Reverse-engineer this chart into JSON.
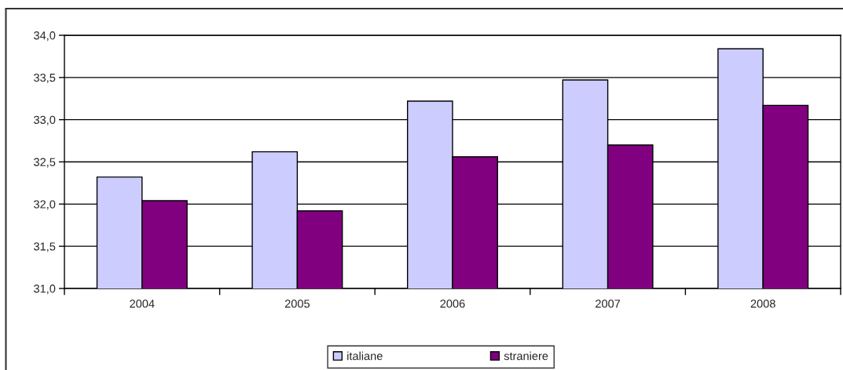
{
  "chart_data": {
    "type": "bar",
    "categories": [
      "2004",
      "2005",
      "2006",
      "2007",
      "2008"
    ],
    "series": [
      {
        "name": "italiane",
        "color": "#ccccff",
        "values": [
          32.32,
          32.62,
          33.22,
          33.47,
          33.84
        ]
      },
      {
        "name": "straniere",
        "color": "#800080",
        "values": [
          32.04,
          31.92,
          32.56,
          32.7,
          33.17
        ]
      }
    ],
    "ylim": [
      31,
      34
    ],
    "yticks": [
      {
        "value": 31,
        "label": "31,0"
      },
      {
        "value": 31.5,
        "label": "31,5"
      },
      {
        "value": 32,
        "label": "32,0"
      },
      {
        "value": 32.5,
        "label": "32,5"
      },
      {
        "value": 33,
        "label": "33,0"
      },
      {
        "value": 33.5,
        "label": "33,5"
      },
      {
        "value": 34,
        "label": "34,0"
      }
    ],
    "grid": "y",
    "legend": "bottom"
  }
}
